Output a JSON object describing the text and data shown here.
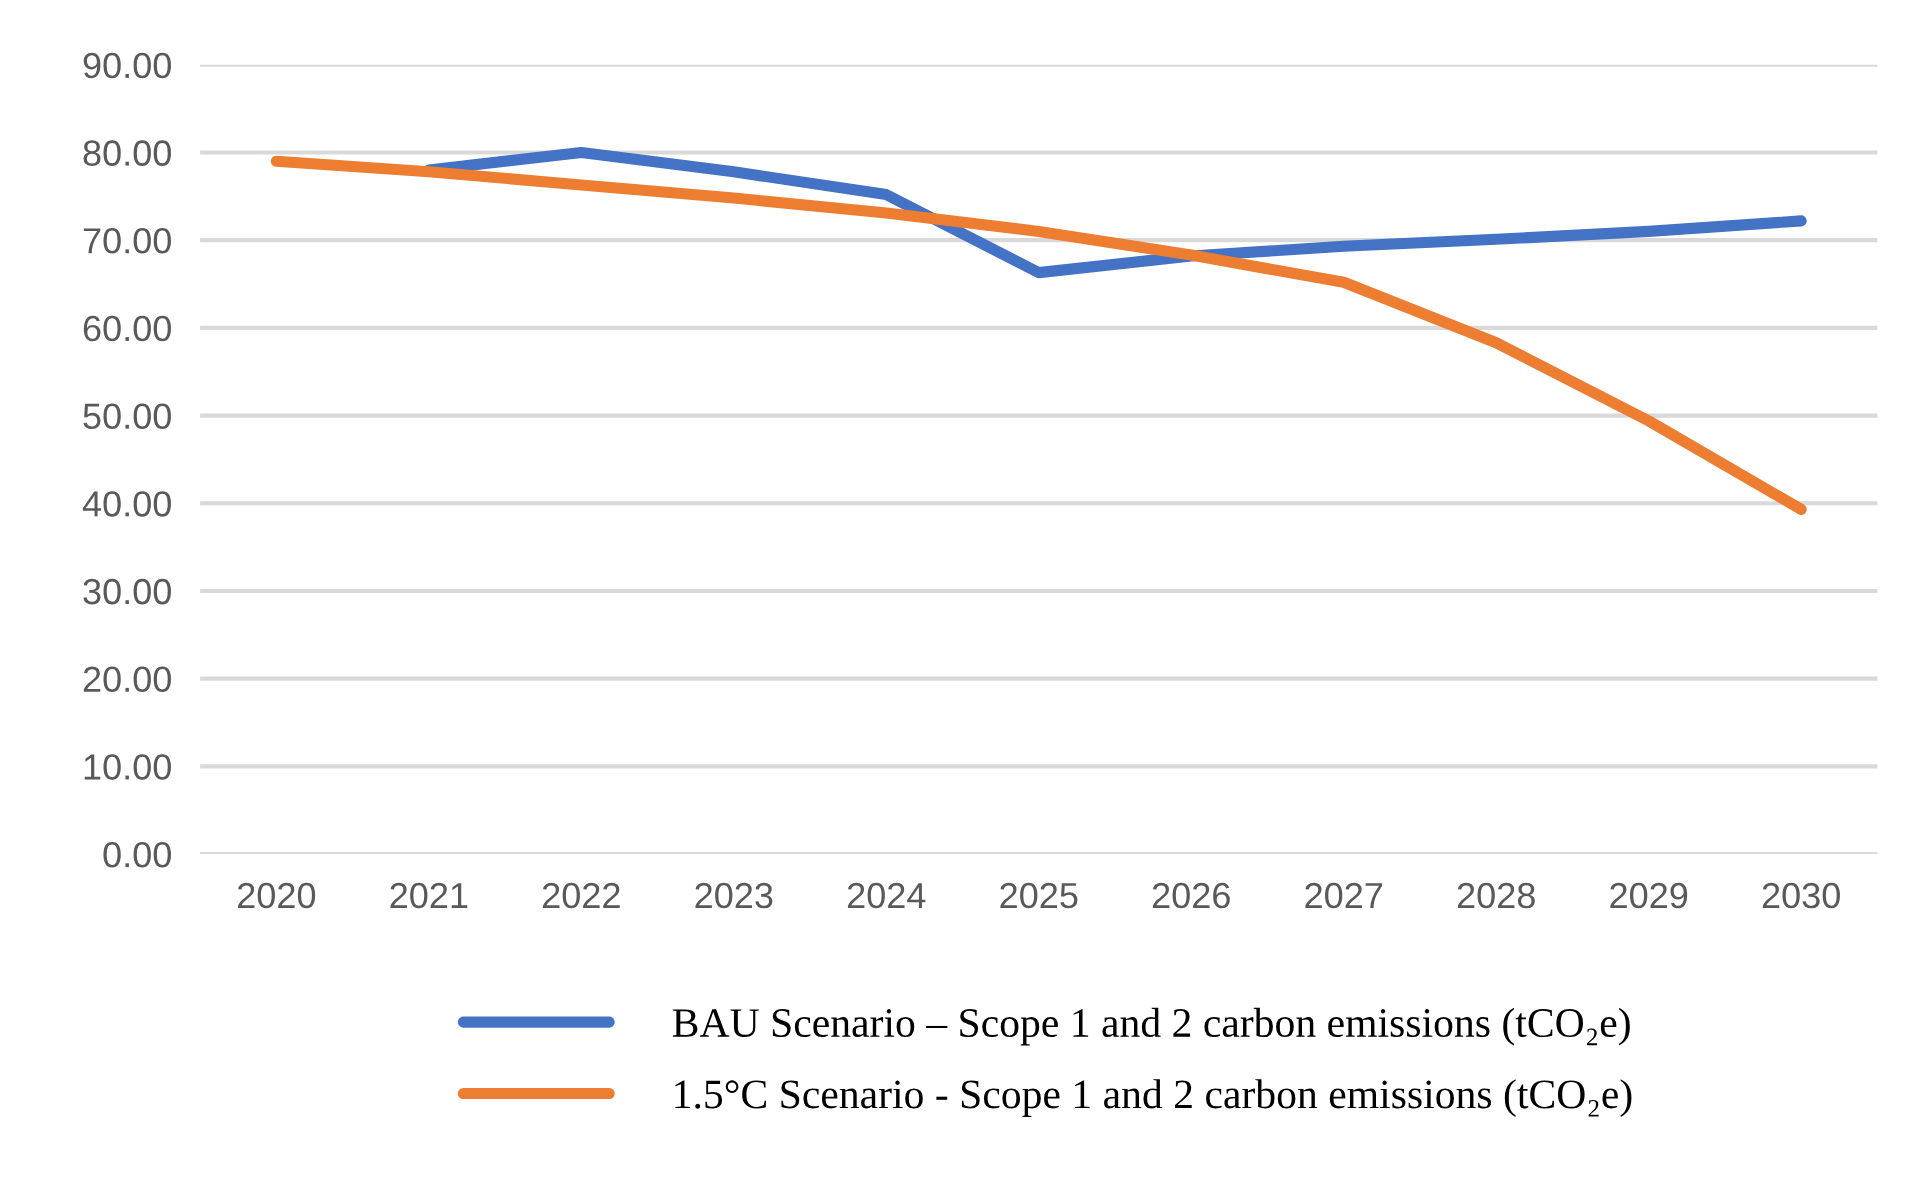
{
  "chart_data": {
    "type": "line",
    "categories": [
      "2020",
      "2021",
      "2022",
      "2023",
      "2024",
      "2025",
      "2026",
      "2027",
      "2028",
      "2029",
      "2030"
    ],
    "series": [
      {
        "name": "BAU Scenario – Scope 1 and 2 carbon emissions (tCO₂e)",
        "color": "#4472c4",
        "values": [
          null,
          78.0,
          80.0,
          77.8,
          75.2,
          66.3,
          68.2,
          69.3,
          70.1,
          71.0,
          72.2
        ]
      },
      {
        "name": "1.5°C Scenario - Scope 1 and 2 carbon emissions (tCO₂e)",
        "color": "#ed7d31",
        "values": [
          79.0,
          77.8,
          76.3,
          74.8,
          73.1,
          71.0,
          68.3,
          65.2,
          58.3,
          49.4,
          39.3
        ]
      }
    ],
    "ylim": [
      0,
      90
    ],
    "yticks": [
      {
        "value": 0,
        "label": "0.00"
      },
      {
        "value": 10,
        "label": "10.00"
      },
      {
        "value": 20,
        "label": "20.00"
      },
      {
        "value": 30,
        "label": "30.00"
      },
      {
        "value": 40,
        "label": "40.00"
      },
      {
        "value": 50,
        "label": "50.00"
      },
      {
        "value": 60,
        "label": "60.00"
      },
      {
        "value": 70,
        "label": "70.00"
      },
      {
        "value": 80,
        "label": "80.00"
      },
      {
        "value": 90,
        "label": "90.00"
      }
    ],
    "grid": "y",
    "legend": "bottom",
    "marker": "none",
    "line_style": "solid"
  }
}
